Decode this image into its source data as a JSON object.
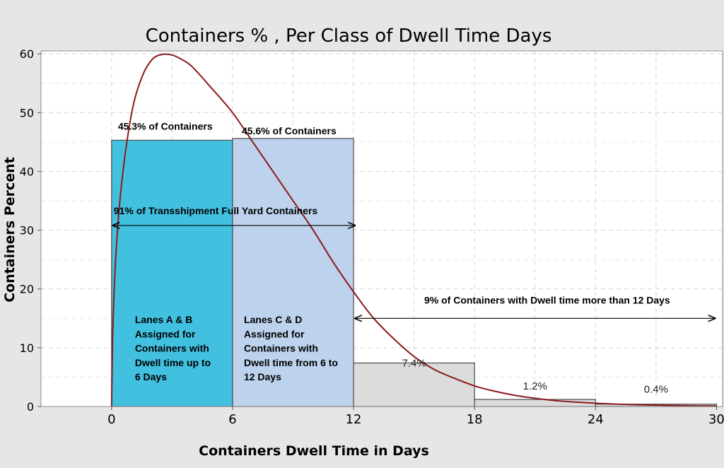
{
  "chart_data": {
    "type": "bar",
    "title": "Containers % ,  Per Class of Dwell Time Days",
    "xlabel": "Containers Dwell Time in Days",
    "ylabel": "Containers Percent",
    "xlim": [
      -3.5,
      30.3
    ],
    "ylim": [
      0,
      60.5
    ],
    "xticks": [
      0,
      6,
      12,
      18,
      24,
      30
    ],
    "yticks": [
      0,
      10,
      20,
      30,
      40,
      50,
      60
    ],
    "grid": true,
    "bins": [
      {
        "start": 0,
        "end": 6,
        "value": 45.3,
        "color": "#42c0e0",
        "label": "45.3% of Containers"
      },
      {
        "start": 6,
        "end": 12,
        "value": 45.6,
        "color": "#bdd2ec",
        "label": "45.6% of Containers"
      },
      {
        "start": 12,
        "end": 18,
        "value": 7.4,
        "color": "#dcdcdc",
        "label": "7.4%"
      },
      {
        "start": 18,
        "end": 24,
        "value": 1.2,
        "color": "#dcdcdc",
        "label": "1.2%"
      },
      {
        "start": 24,
        "end": 30,
        "value": 0.4,
        "color": "#dcdcdc",
        "label": "0.4%"
      }
    ],
    "fit_curve": {
      "color": "#8b1a1a",
      "x": [
        0.05,
        0.2,
        0.5,
        1,
        1.5,
        2,
        2.5,
        3,
        3.5,
        4,
        5,
        6,
        7,
        8,
        9,
        10,
        11,
        12,
        13,
        14,
        15,
        16,
        17,
        18,
        19,
        20,
        21,
        22,
        23,
        24,
        25,
        26,
        27,
        28,
        29,
        30
      ],
      "y": [
        12,
        25,
        38,
        50,
        56,
        59,
        59.9,
        59.8,
        59,
        57.8,
        54,
        50,
        45,
        40,
        35,
        30,
        24.5,
        19.5,
        15,
        11.5,
        8.5,
        6.3,
        4.8,
        3.5,
        2.6,
        1.9,
        1.4,
        1.0,
        0.75,
        0.55,
        0.4,
        0.3,
        0.22,
        0.16,
        0.12,
        0.1
      ]
    },
    "annotations": {
      "span_91": {
        "text": "91% of Transshipment Full Yard Containers",
        "x_from": 0,
        "x_to": 12,
        "y": 30.8
      },
      "span_9": {
        "text": "9% of Containers with Dwell time more than 12 Days",
        "x_from": 12,
        "x_to": 30,
        "y": 15
      },
      "lanes_ab": [
        "Lanes A & B",
        "Assigned for",
        "Containers with",
        "Dwell time up to",
        "6 Days"
      ],
      "lanes_cd": [
        " Lanes C & D",
        "Assigned for",
        "Containers with",
        "Dwell time from 6 to",
        "12 Days"
      ]
    }
  }
}
